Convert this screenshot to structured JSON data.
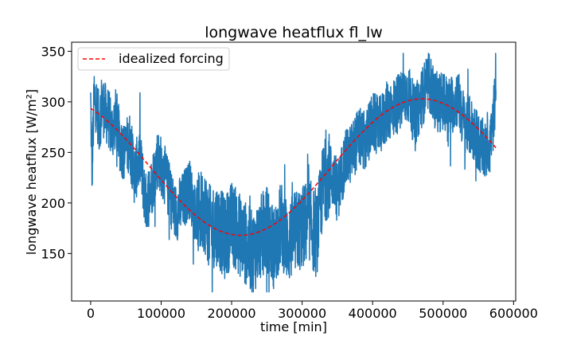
{
  "chart_data": {
    "type": "line",
    "title": "longwave heatflux fl_lw",
    "xlabel": "time [min]",
    "ylabel": "longwave heatflux [W/m²]",
    "xlim": [
      -27000,
      603000
    ],
    "ylim": [
      103,
      359
    ],
    "x_ticks": [
      0,
      100000,
      200000,
      300000,
      400000,
      500000,
      600000
    ],
    "y_ticks": [
      150,
      200,
      250,
      300,
      350
    ],
    "grid": false,
    "legend": {
      "placement": "top-left",
      "entries": [
        "idealized forcing"
      ]
    },
    "series": [
      {
        "name": "",
        "color": "#1f77b4",
        "style": "solid",
        "description_points": {
          "x": [
            0,
            2000,
            5000,
            8000,
            12000,
            16000,
            20000,
            25000,
            30000,
            36000,
            42000,
            48000,
            55000,
            62000,
            70000,
            78000,
            86000,
            95000,
            104000,
            112000,
            120000,
            130000,
            140000,
            150000,
            160000,
            170000,
            180000,
            190000,
            200000,
            210000,
            220000,
            230000,
            240000,
            250000,
            260000,
            270000,
            280000,
            290000,
            300000,
            310000,
            320000,
            330000,
            340000,
            350000,
            360000,
            370000,
            380000,
            390000,
            400000,
            410000,
            420000,
            430000,
            440000,
            450000,
            460000,
            470000,
            480000,
            490000,
            500000,
            510000,
            520000,
            530000,
            540000,
            550000,
            560000,
            570000,
            575000
          ],
          "y": [
            300,
            232,
            306,
            298,
            278,
            300,
            290,
            285,
            270,
            285,
            258,
            250,
            262,
            228,
            245,
            200,
            215,
            245,
            230,
            210,
            190,
            200,
            215,
            185,
            195,
            175,
            180,
            165,
            180,
            170,
            160,
            150,
            165,
            175,
            155,
            180,
            160,
            170,
            175,
            185,
            165,
            220,
            230,
            210,
            240,
            250,
            265,
            260,
            280,
            275,
            290,
            295,
            300,
            310,
            285,
            305,
            320,
            300,
            300,
            295,
            305,
            280,
            275,
            260,
            250,
            270,
            318
          ]
        }
      },
      {
        "name": "idealized forcing",
        "color": "#ff0000",
        "style": "dashed",
        "function": "sinusoid",
        "min": 168,
        "max": 303,
        "x_at_min": 213000,
        "x_at_max": 470000,
        "x_range": [
          0,
          575000
        ]
      }
    ]
  }
}
